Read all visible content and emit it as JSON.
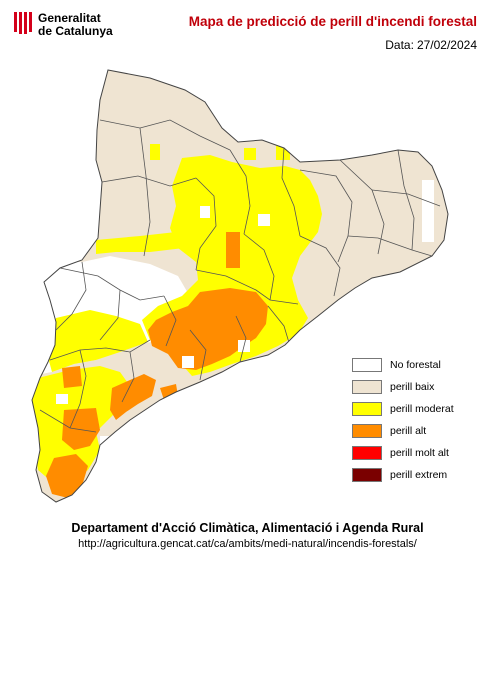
{
  "header": {
    "org_line1": "Generalitat",
    "org_line2": "de Catalunya",
    "title": "Mapa de predicció de perill d'incendi forestal",
    "date_label": "Data:",
    "date_value": "27/02/2024"
  },
  "legend": [
    {
      "label": "No forestal",
      "color": "#ffffff"
    },
    {
      "label": "perill baix",
      "color": "#efe4d2"
    },
    {
      "label": "perill moderat",
      "color": "#ffff00"
    },
    {
      "label": "perill alt",
      "color": "#ff8c00"
    },
    {
      "label": "perill molt alt",
      "color": "#ff0000"
    },
    {
      "label": "perill extrem",
      "color": "#7a0000"
    }
  ],
  "footer": {
    "department": "Departament d'Acció Climàtica, Alimentació i Agenda Rural",
    "url": "http://agricultura.gencat.cat/ca/ambits/medi-natural/incendis-forestals/"
  },
  "colors": {
    "title": "#c0000a",
    "border": "#555555"
  }
}
